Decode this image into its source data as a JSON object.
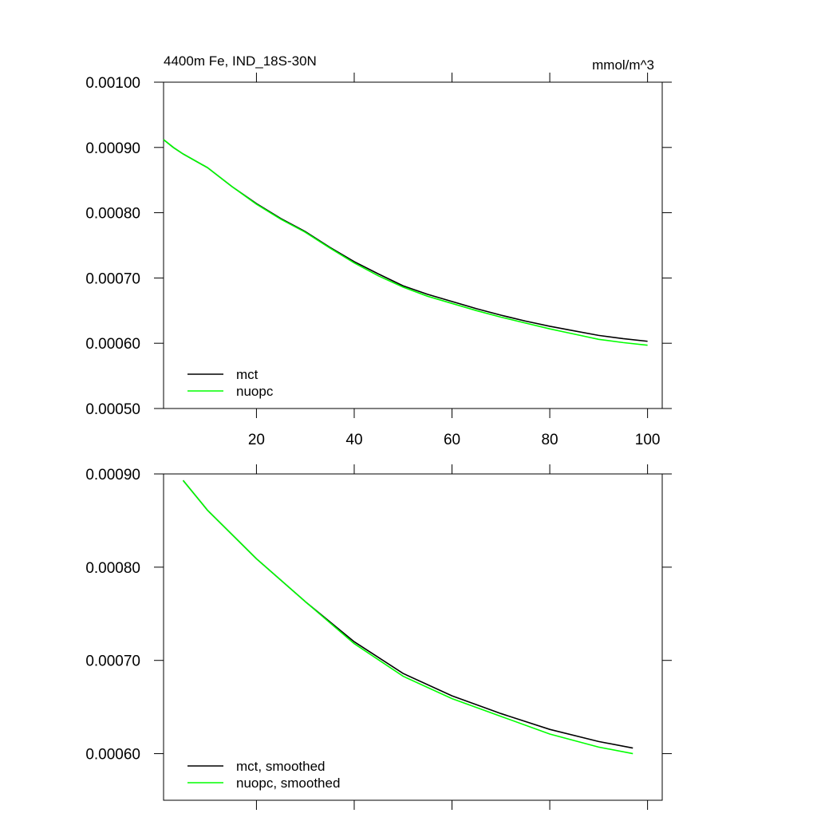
{
  "chart_data": [
    {
      "type": "line",
      "title": "4400m Fe, IND_18S-30N",
      "units": "mmol/m^3",
      "x": [
        1,
        3,
        5,
        10,
        15,
        20,
        25,
        30,
        35,
        40,
        45,
        50,
        55,
        60,
        65,
        70,
        75,
        80,
        85,
        90,
        95,
        100
      ],
      "series": [
        {
          "name": "mct",
          "color": "#000000",
          "values": [
            0.000912,
            0.0009,
            0.00089,
            0.000869,
            0.00084,
            0.000814,
            0.000791,
            0.000771,
            0.000747,
            0.000725,
            0.000706,
            0.000688,
            0.000675,
            0.000664,
            0.000653,
            0.000643,
            0.000634,
            0.000626,
            0.000619,
            0.000612,
            0.000607,
            0.000603
          ]
        },
        {
          "name": "nuopc",
          "color": "#00ff00",
          "values": [
            0.000912,
            0.0009,
            0.00089,
            0.000869,
            0.00084,
            0.000813,
            0.00079,
            0.00077,
            0.000746,
            0.000723,
            0.000703,
            0.000686,
            0.000672,
            0.000661,
            0.00065,
            0.00064,
            0.000631,
            0.000622,
            0.000614,
            0.000606,
            0.000601,
            0.000597
          ]
        }
      ],
      "xlim": [
        1,
        103
      ],
      "xticks": [
        20,
        40,
        60,
        80,
        100
      ],
      "ylim": [
        0.0005,
        0.001
      ],
      "yticks": [
        {
          "value": 0.0005,
          "label": "0.00050"
        },
        {
          "value": 0.0006,
          "label": "0.00060"
        },
        {
          "value": 0.0007,
          "label": "0.00070"
        },
        {
          "value": 0.0008,
          "label": "0.00080"
        },
        {
          "value": 0.0009,
          "label": "0.00090"
        },
        {
          "value": 0.001,
          "label": "0.00100"
        }
      ]
    },
    {
      "type": "line",
      "x": [
        5,
        10,
        20,
        30,
        40,
        50,
        60,
        70,
        80,
        90,
        97
      ],
      "series": [
        {
          "name": "mct, smoothed",
          "color": "#000000",
          "values": [
            0.000893,
            0.000861,
            0.000809,
            0.000763,
            0.00072,
            0.000686,
            0.000662,
            0.000643,
            0.000626,
            0.000613,
            0.000606
          ]
        },
        {
          "name": "nuopc, smoothed",
          "color": "#00ff00",
          "values": [
            0.000893,
            0.000861,
            0.000809,
            0.000763,
            0.000718,
            0.000683,
            0.000659,
            0.00064,
            0.000621,
            0.000607,
            0.0006
          ]
        }
      ],
      "xlim": [
        1,
        103
      ],
      "xticks": [
        20,
        40,
        60,
        80,
        100
      ],
      "ylim": [
        0.00055,
        0.0009
      ],
      "yticks": [
        {
          "value": 0.0006,
          "label": "0.00060"
        },
        {
          "value": 0.0007,
          "label": "0.00070"
        },
        {
          "value": 0.0008,
          "label": "0.00080"
        },
        {
          "value": 0.0009,
          "label": "0.00090"
        }
      ]
    }
  ]
}
